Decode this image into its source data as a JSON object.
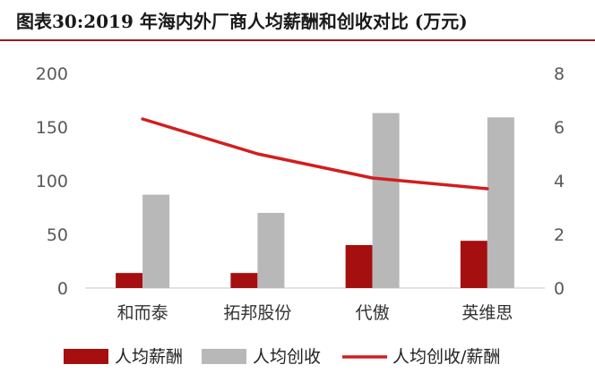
{
  "figure_title": "图表30:2019 年海内外厂商人均薪酬和创收对比 (万元)",
  "colors": {
    "salary": "#a50f0f",
    "revenue": "#b8b8b8",
    "ratio": "#d21e1e",
    "title_rule": "#9b1c1f"
  },
  "chart_data": {
    "type": "bar",
    "categories": [
      "和而泰",
      "拓邦股份",
      "代傲",
      "英维思"
    ],
    "series": [
      {
        "name": "人均薪酬",
        "type": "bar",
        "axis": "left",
        "values": [
          14,
          14,
          40,
          44
        ]
      },
      {
        "name": "人均创收",
        "type": "bar",
        "axis": "left",
        "values": [
          87,
          70,
          163,
          159
        ]
      },
      {
        "name": "人均创收/薪酬",
        "type": "line",
        "axis": "right",
        "values": [
          6.3,
          5.0,
          4.1,
          3.7
        ]
      }
    ],
    "y_left": {
      "min": 0,
      "max": 200,
      "ticks": [
        0,
        50,
        100,
        150,
        200
      ]
    },
    "y_right": {
      "min": 0,
      "max": 8,
      "ticks": [
        0,
        2,
        4,
        6,
        8
      ]
    },
    "legend_position": "bottom",
    "grid": false
  }
}
